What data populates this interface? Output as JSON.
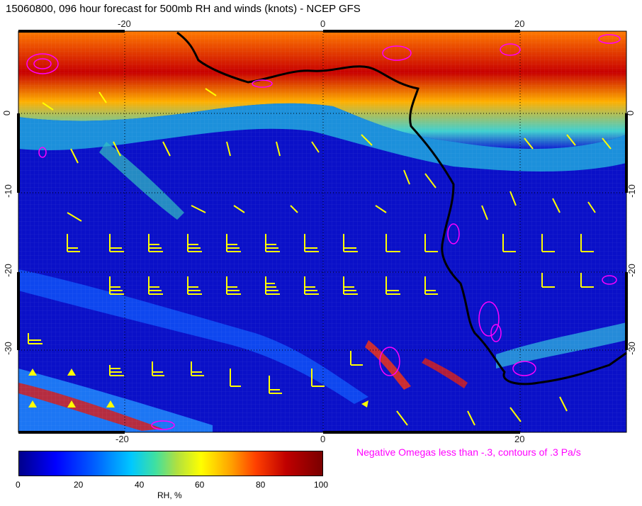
{
  "title": "15060800, 096 hour forecast for 500mb RH and winds (knots) - NCEP GFS",
  "map": {
    "lon_ticks_top": [
      "-20",
      "0",
      "20"
    ],
    "lon_ticks_bottom": [
      "-20",
      "0",
      "20"
    ],
    "lat_ticks_left": [
      "0",
      "-10",
      "-20",
      "-30"
    ],
    "lat_ticks_right": [
      "0",
      "-10",
      "-20",
      "-30"
    ],
    "barb_color": "#ffff00",
    "omega_color": "#ff00ff",
    "coast_color": "#000000"
  },
  "omega_note": "Negative Omegas less than -.3, contours of .3 Pa/s",
  "colorbar": {
    "ticks": [
      "0",
      "20",
      "40",
      "60",
      "80",
      "100"
    ],
    "label": "RH, %"
  }
}
